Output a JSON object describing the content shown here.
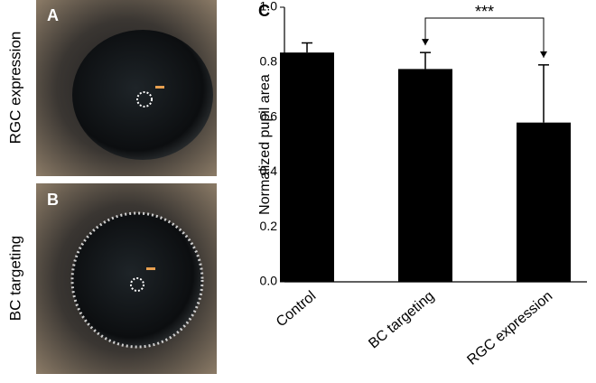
{
  "panels": [
    {
      "label": "A",
      "caption": "RGC expression"
    },
    {
      "label": "B",
      "caption": "BC targeting"
    }
  ],
  "chart_data": {
    "type": "bar",
    "panel_label": "C",
    "y_label": "Normalized pupil area",
    "categories": [
      "Control",
      "BC targeting",
      "RGC expression"
    ],
    "values": [
      0.835,
      0.775,
      0.58
    ],
    "errors": [
      0.035,
      0.06,
      0.21
    ],
    "color": "#000000",
    "ylim": [
      0,
      1.0
    ],
    "yticks": [
      {
        "value": 0,
        "label": "0.0"
      },
      0.2,
      0.4,
      0.6,
      0.8,
      {
        "value": 1.0,
        "label": "1.0"
      }
    ],
    "annotations": [
      {
        "text": "***",
        "from": 1,
        "to": 2
      }
    ]
  }
}
